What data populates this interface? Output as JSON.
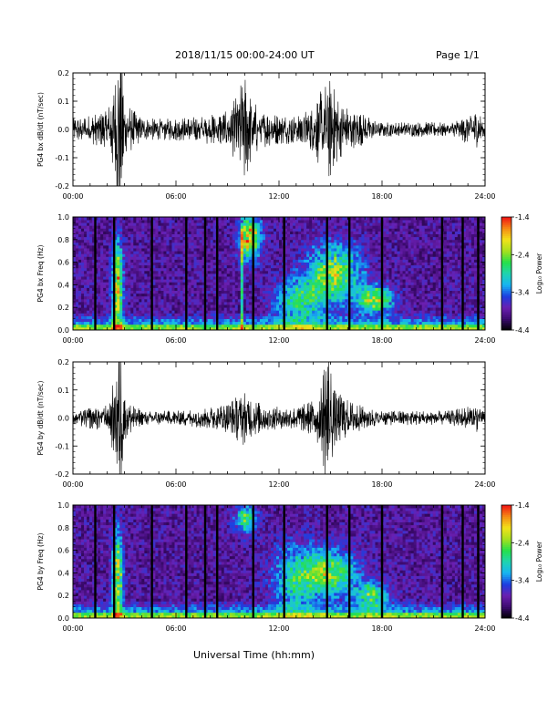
{
  "header": {
    "title": "2018/11/15  00:00-24:00 UT",
    "page": "Page 1/1"
  },
  "footer": {
    "xlabel": "Universal Time (hh:mm)"
  },
  "colorbar": {
    "ticks": [
      "-1.4",
      "-2.4",
      "-3.4",
      "-4.4"
    ],
    "label": "Log₁₀ Power",
    "colors": [
      "#000000",
      "#3b0a6e",
      "#6a1fb0",
      "#1d3ee0",
      "#17b4f2",
      "#1fd4b0",
      "#25e04a",
      "#a6e01e",
      "#f2e21a",
      "#f58b14",
      "#f01414"
    ]
  },
  "chart_data": [
    {
      "type": "line",
      "ylabel": "PG4 bx dB/dt (nT/sec)",
      "xlim": [
        0,
        24
      ],
      "ylim": [
        -0.2,
        0.2
      ],
      "x_tick_labels": [
        "00:00",
        "06:00",
        "12:00",
        "18:00",
        "24:00"
      ],
      "y_tick_labels": [
        "0.2",
        "0.1",
        "0.0",
        "-0.1",
        "-0.2"
      ],
      "series": [
        {
          "envelope_hours": [
            0,
            1,
            2,
            2.5,
            2.7,
            3,
            4,
            6,
            8,
            9,
            9.5,
            10,
            10.5,
            11,
            12,
            13,
            14,
            14.5,
            15,
            15.5,
            16,
            17,
            18,
            20,
            22,
            23.5,
            24
          ],
          "amplitude": [
            0.03,
            0.04,
            0.05,
            0.15,
            0.28,
            0.08,
            0.03,
            0.03,
            0.04,
            0.05,
            0.09,
            0.16,
            0.08,
            0.05,
            0.04,
            0.04,
            0.06,
            0.12,
            0.14,
            0.08,
            0.06,
            0.04,
            0.02,
            0.02,
            0.02,
            0.05,
            0.03
          ]
        }
      ]
    },
    {
      "type": "heatmap",
      "ylabel": "PG4 bx Freq (Hz)",
      "xlim": [
        0,
        24
      ],
      "ylim": [
        0,
        1.0
      ],
      "x_tick_labels": [
        "00:00",
        "06:00",
        "12:00",
        "18:00",
        "24:00"
      ],
      "y_tick_labels": [
        "1.0",
        "0.8",
        "0.6",
        "0.4",
        "0.2",
        "0.0"
      ],
      "value_range_log10_power": [
        -4.4,
        -1.4
      ],
      "gap_lines_hours": [
        1.3,
        2.4,
        4.6,
        6.6,
        7.7,
        8.4,
        10.5,
        12.3,
        14.8,
        16.1,
        18.0,
        21.5,
        22.7,
        23.6
      ]
    },
    {
      "type": "line",
      "ylabel": "PG4 by dB/dt (nT/sec)",
      "xlim": [
        0,
        24
      ],
      "ylim": [
        -0.2,
        0.2
      ],
      "x_tick_labels": [
        "00:00",
        "06:00",
        "12:00",
        "18:00",
        "24:00"
      ],
      "y_tick_labels": [
        "0.2",
        "0.1",
        "0.0",
        "-0.1",
        "-0.2"
      ],
      "series": [
        {
          "envelope_hours": [
            0,
            1,
            2,
            2.5,
            2.7,
            3,
            4,
            6,
            8,
            9,
            9.5,
            10,
            10.5,
            11,
            12,
            13,
            14,
            14.5,
            14.8,
            15.2,
            16,
            17,
            18,
            20,
            22,
            23.5,
            24
          ],
          "amplitude": [
            0.02,
            0.03,
            0.04,
            0.12,
            0.25,
            0.06,
            0.02,
            0.02,
            0.03,
            0.04,
            0.06,
            0.08,
            0.05,
            0.04,
            0.03,
            0.03,
            0.05,
            0.1,
            0.22,
            0.08,
            0.05,
            0.03,
            0.02,
            0.02,
            0.02,
            0.04,
            0.02
          ]
        }
      ]
    },
    {
      "type": "heatmap",
      "ylabel": "PG4 by Freq (Hz)",
      "xlim": [
        0,
        24
      ],
      "ylim": [
        0,
        1.0
      ],
      "x_tick_labels": [
        "00:00",
        "06:00",
        "12:00",
        "18:00",
        "24:00"
      ],
      "y_tick_labels": [
        "1.0",
        "0.8",
        "0.6",
        "0.4",
        "0.2",
        "0.0"
      ],
      "value_range_log10_power": [
        -4.4,
        -1.4
      ],
      "gap_lines_hours": [
        1.3,
        2.4,
        4.6,
        6.6,
        7.7,
        8.4,
        10.5,
        12.3,
        14.8,
        16.1,
        18.0,
        21.5,
        22.7,
        23.6
      ]
    }
  ]
}
